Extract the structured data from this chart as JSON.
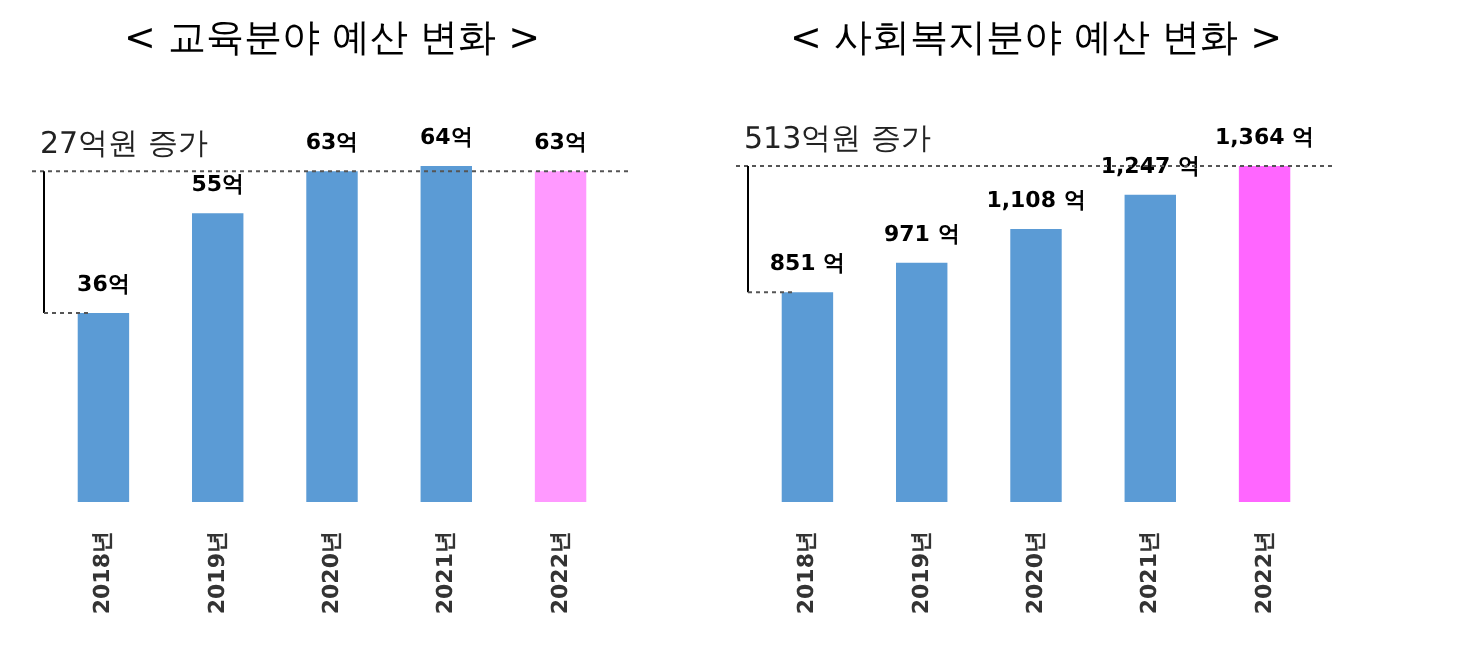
{
  "chart_data": [
    {
      "type": "bar",
      "title": "< 교육분야 예산 변화 >",
      "categories": [
        "2018년",
        "2019년",
        "2020년",
        "2021년",
        "2022년"
      ],
      "values": [
        36,
        55,
        63,
        64,
        63
      ],
      "colors": [
        "#5b9bd5",
        "#5b9bd5",
        "#5b9bd5",
        "#5b9bd5",
        "#ff99ff"
      ],
      "value_labels": [
        "36억",
        "55억",
        "63억",
        "64억",
        "63억"
      ],
      "annotations": [
        "27억원 증가"
      ],
      "ref_lines": [
        {
          "axis": "y",
          "value": 63,
          "line_style": "dotted",
          "color": "#555555"
        }
      ]
    },
    {
      "type": "bar",
      "title": "< 사회복지분야 예산 변화 >",
      "categories": [
        "2018년",
        "2019년",
        "2020년",
        "2021년",
        "2022년"
      ],
      "values": [
        851,
        971,
        1108,
        1247,
        1364
      ],
      "colors": [
        "#5b9bd5",
        "#5b9bd5",
        "#5b9bd5",
        "#5b9bd5",
        "#ff66ff"
      ],
      "value_labels": [
        "851 억",
        "971 억",
        "1,108 억",
        "1,247 억",
        "1,364 억"
      ],
      "annotations": [
        "513억원 증가"
      ],
      "ref_lines": [
        {
          "axis": "y",
          "value": 1364,
          "line_style": "dotted",
          "color": "#555555"
        }
      ]
    }
  ]
}
